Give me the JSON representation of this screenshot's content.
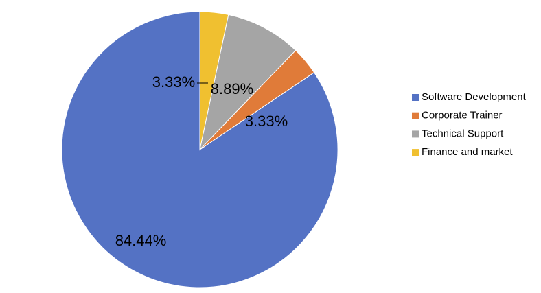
{
  "chart_data": {
    "type": "pie",
    "categories": [
      "Software Development",
      "Corporate Trainer",
      "Technical Support",
      "Finance and market"
    ],
    "values": [
      84.44,
      3.33,
      8.89,
      3.33
    ],
    "value_labels": [
      "84.44%",
      "3.33%",
      "8.89%",
      "3.33%"
    ],
    "colors": [
      "#5472c4",
      "#e07b39",
      "#a5a5a5",
      "#f0c030"
    ],
    "legend": "right"
  }
}
